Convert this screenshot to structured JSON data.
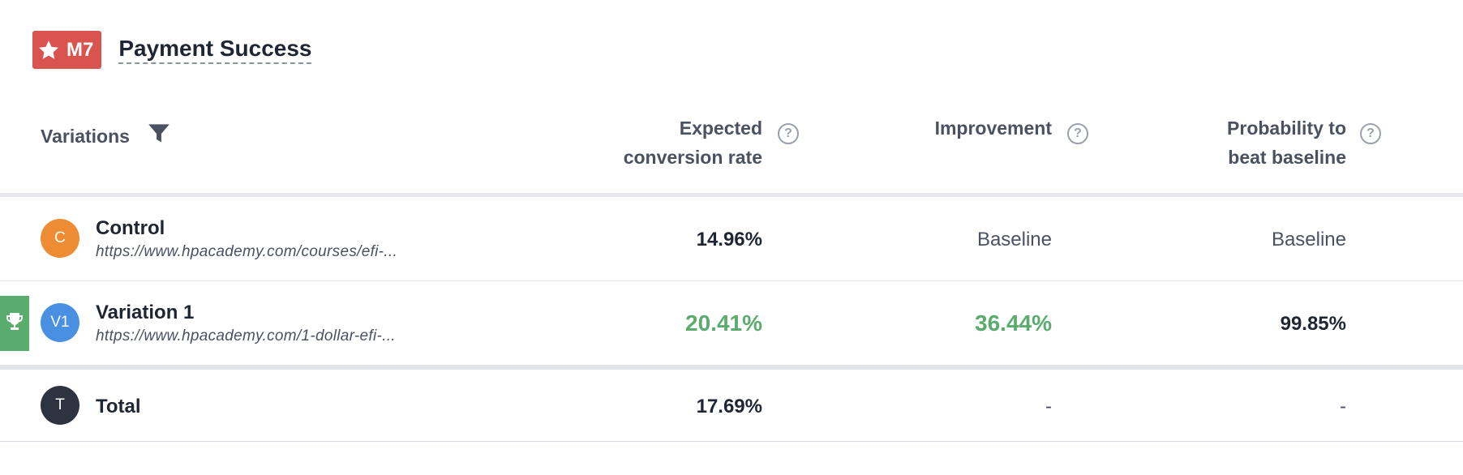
{
  "goal": {
    "badge_label": "M7",
    "title": "Payment Success"
  },
  "table": {
    "columns": {
      "variations": "Variations",
      "expected_line1": "Expected",
      "expected_line2": "conversion rate",
      "improvement": "Improvement",
      "probability_line1": "Probability to",
      "probability_line2": "beat baseline",
      "help_glyph": "?"
    },
    "rows": [
      {
        "initial": "C",
        "name": "Control",
        "url": "https://www.hpacademy.com/courses/efi-...",
        "expected_rate": "14.96%",
        "improvement": "Baseline",
        "probability": "Baseline",
        "avatar_color": "#ee8c34"
      },
      {
        "initial": "V1",
        "name": "Variation 1",
        "url": "https://www.hpacademy.com/1-dollar-efi-...",
        "expected_rate": "20.41%",
        "improvement": "36.44%",
        "probability": "99.85%",
        "avatar_color": "#4a90e2",
        "winner": true
      }
    ],
    "total": {
      "initial": "T",
      "name": "Total",
      "expected_rate": "17.69%",
      "improvement": "-",
      "probability": "-",
      "avatar_color": "#2b3440"
    }
  },
  "colors": {
    "badge": "#d9534f",
    "positive": "#5aac6e",
    "winner_flag": "#5aac6e"
  },
  "icons": {
    "badge_icon": "star-icon",
    "filter_icon": "filter-icon",
    "help_icon": "question-circle-icon",
    "winner_icon": "trophy-icon"
  }
}
